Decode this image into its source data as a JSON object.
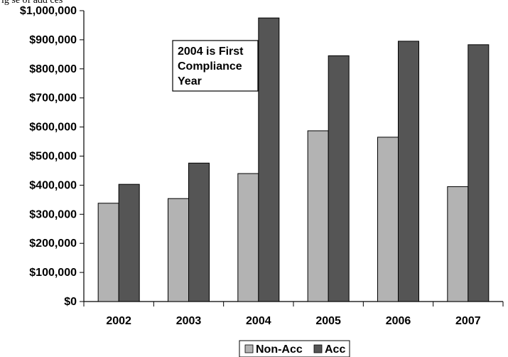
{
  "header_fragment": "ig      se of add    ces",
  "chart_data": {
    "type": "bar",
    "categories": [
      "2002",
      "2003",
      "2004",
      "2005",
      "2006",
      "2007"
    ],
    "series": [
      {
        "name": "Non-Acc",
        "values": [
          338000,
          354000,
          440000,
          587000,
          565000,
          395000
        ],
        "color": "#b3b3b3"
      },
      {
        "name": "Acc",
        "values": [
          403000,
          476000,
          975000,
          845000,
          895000,
          883000
        ],
        "color": "#555555"
      }
    ],
    "ylim": [
      0,
      1000000
    ],
    "yticks": [
      0,
      100000,
      200000,
      300000,
      400000,
      500000,
      600000,
      700000,
      800000,
      900000,
      1000000
    ],
    "ytick_labels": [
      "$0",
      "$100,000",
      "$200,000",
      "$300,000",
      "$400,000",
      "$500,000",
      "$600,000",
      "$700,000",
      "$800,000",
      "$900,000",
      "$1,000,000"
    ],
    "annotation": [
      "2004 is First",
      "Compliance",
      "Year"
    ],
    "legend_position": "bottom-center",
    "grid": false
  }
}
